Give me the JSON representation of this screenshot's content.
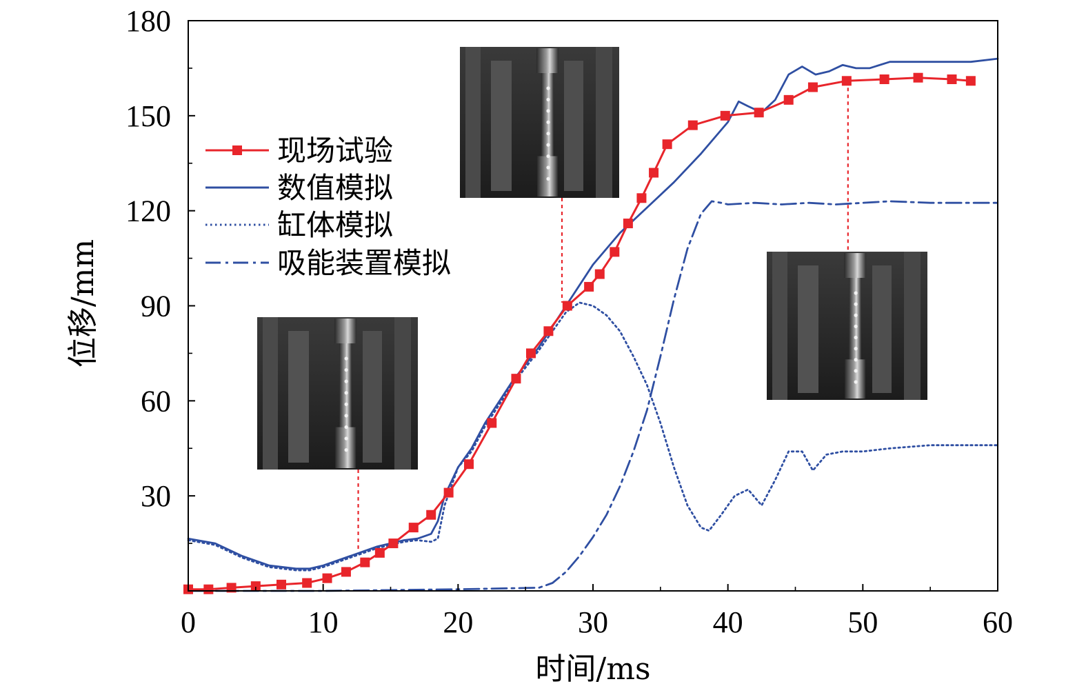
{
  "chart_data": {
    "type": "line",
    "xlabel": "时间/ms",
    "ylabel": "位移/mm",
    "xlim": [
      0,
      60
    ],
    "ylim": [
      0,
      180
    ],
    "xticks": [
      0,
      10,
      20,
      30,
      40,
      50,
      60
    ],
    "yticks": [
      30,
      60,
      90,
      120,
      150,
      180
    ],
    "grid": false,
    "legend_position": "upper-left",
    "colors": {
      "experiment": "#e8252b",
      "simulation": "#2f4fa2",
      "guide": "#e8252b"
    },
    "series": [
      {
        "name": "现场试验",
        "style": "line-square-markers",
        "color": "#e8252b",
        "x": [
          0,
          1.5,
          3.2,
          5,
          6.9,
          8.8,
          10.3,
          11.7,
          13.1,
          14.2,
          15.2,
          16.7,
          18,
          19.3,
          20.8,
          22.5,
          24.3,
          25.4,
          26.7,
          28.1,
          29.7,
          30.5,
          31.6,
          32.6,
          33.6,
          34.5,
          35.5,
          37.4,
          39.8,
          42.3,
          44.5,
          46.3,
          48.8,
          51.6,
          54.1,
          56.6,
          58
        ],
        "y": [
          0.5,
          0.5,
          1,
          1.5,
          2,
          2.5,
          4,
          6,
          9,
          12,
          15,
          20,
          24,
          31,
          40,
          53,
          67,
          75,
          82,
          90,
          96,
          100,
          107,
          116,
          124,
          132,
          141,
          147,
          150,
          151,
          155,
          159,
          161,
          161.5,
          162,
          161.5,
          161
        ]
      },
      {
        "name": "数值模拟",
        "style": "solid",
        "color": "#2f4fa2",
        "x": [
          0,
          2,
          4,
          6,
          8,
          9,
          10,
          12,
          14,
          16,
          17,
          18,
          18.5,
          19,
          20,
          21,
          22,
          24,
          26,
          28,
          30,
          32,
          34,
          36,
          38,
          40,
          40.8,
          41.5,
          42.5,
          43.5,
          44.5,
          45.5,
          46.5,
          47.5,
          48.5,
          49.5,
          50.5,
          52,
          54,
          56,
          58,
          60
        ],
        "y": [
          16.5,
          15,
          11,
          8,
          7,
          7,
          8,
          11,
          14,
          16,
          16.5,
          18,
          22,
          30,
          39,
          45,
          53,
          66,
          77,
          90,
          103,
          113,
          121,
          129,
          138,
          148,
          154.5,
          153,
          151,
          155,
          163,
          165.5,
          163,
          164,
          166,
          165,
          165,
          167,
          167,
          167,
          167,
          168
        ]
      },
      {
        "name": "缸体模拟",
        "style": "dotted",
        "color": "#2f4fa2",
        "x": [
          0,
          2,
          4,
          6,
          8,
          9,
          10,
          12,
          14,
          16,
          17,
          18,
          18.5,
          19,
          20,
          21,
          22,
          24,
          26,
          28,
          29,
          30,
          31,
          32,
          33,
          34,
          35,
          36,
          37,
          38,
          38.6,
          39.5,
          40.5,
          41.5,
          42.5,
          43.5,
          44.5,
          45.5,
          46.3,
          47.3,
          48.5,
          50,
          52,
          55,
          58,
          60
        ],
        "y": [
          16,
          14.5,
          10.5,
          7.5,
          6.5,
          6.5,
          7.5,
          10.5,
          13.5,
          15.5,
          16,
          15.5,
          16.5,
          27,
          39,
          44,
          52,
          65,
          76,
          88,
          91,
          90,
          87,
          82,
          74,
          65,
          53,
          39,
          27,
          20,
          19,
          24,
          30,
          32,
          27,
          35,
          44,
          44,
          38,
          43,
          44,
          44,
          45,
          46,
          46,
          46
        ]
      },
      {
        "name": "吸能装置模拟",
        "style": "dash-dot",
        "color": "#2f4fa2",
        "x": [
          0,
          10,
          20,
          26,
          27,
          28,
          29,
          30,
          31,
          32,
          33,
          34,
          35,
          36,
          37,
          38,
          38.8,
          39.5,
          40,
          42,
          44,
          46,
          48,
          50,
          52,
          55,
          58,
          60
        ],
        "y": [
          0,
          0,
          0.5,
          1,
          2.5,
          6,
          11,
          17,
          24,
          33,
          44,
          57,
          74,
          92,
          108,
          119,
          123,
          122.5,
          122,
          122.5,
          122,
          122.5,
          122,
          122.5,
          123,
          122.5,
          122.5,
          122.5
        ]
      }
    ],
    "insets": [
      {
        "name": "photo-early",
        "anchor_x": 12.6,
        "anchor_y": 13
      },
      {
        "name": "photo-middle",
        "anchor_x": 27.7,
        "anchor_y": 91
      },
      {
        "name": "photo-late",
        "anchor_x": 48.9,
        "anchor_y": 161
      }
    ]
  }
}
